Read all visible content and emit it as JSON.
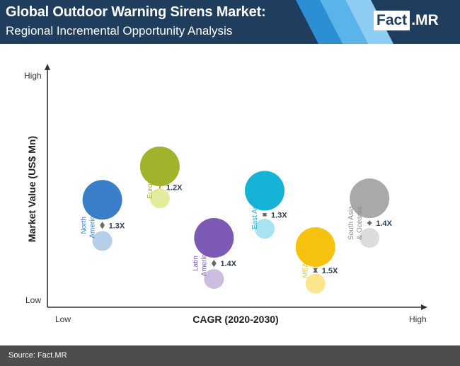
{
  "header": {
    "title": "Global Outdoor Warning Sirens Market:",
    "subtitle": "Regional Incremental Opportunity Analysis",
    "bg_color": "#1f3d5c",
    "stripe_colors": [
      "#2b8fd6",
      "#5ab4ea",
      "#8dcdf3"
    ]
  },
  "logo": {
    "fact": "Fact",
    "dot": ".",
    "mr": "MR"
  },
  "footer": {
    "source": "Source: Fact.MR"
  },
  "chart_data": {
    "type": "bubble",
    "xlabel": "CAGR (2020-2030)",
    "ylabel": "Market Value (US$ Mn)",
    "x_low": "Low",
    "x_high": "High",
    "y_low": "Low",
    "y_high": "High",
    "regions": [
      {
        "name": [
          "North",
          "America"
        ],
        "cagr": 0.11,
        "value": 0.58,
        "value_2020": 0.31,
        "multiplier": "1.3X",
        "color": "#3a7ec9",
        "light": "#b6cfe9",
        "size": "large"
      },
      {
        "name": [
          "Europe"
        ],
        "cagr": 0.28,
        "value": 0.8,
        "value_2020": 0.59,
        "multiplier": "1.2X",
        "color": "#a1b22d",
        "light": "#e4eb9a",
        "size": "large"
      },
      {
        "name": [
          "Latin",
          "America"
        ],
        "cagr": 0.44,
        "value": 0.33,
        "value_2020": 0.06,
        "multiplier": "1.4X",
        "color": "#7d5ab5",
        "light": "#cbbde0",
        "size": "large"
      },
      {
        "name": [
          "East Asia"
        ],
        "cagr": 0.59,
        "value": 0.64,
        "value_2020": 0.39,
        "multiplier": "1.3X",
        "color": "#16b3d7",
        "light": "#a9e3f2",
        "size": "large"
      },
      {
        "name": [
          "MEA"
        ],
        "cagr": 0.74,
        "value": 0.27,
        "value_2020": 0.03,
        "multiplier": "1.5X",
        "color": "#f6c20f",
        "light": "#fbe68b",
        "size": "large"
      },
      {
        "name": [
          "South Asia",
          "& Oceania"
        ],
        "cagr": 0.9,
        "value": 0.59,
        "value_2020": 0.33,
        "multiplier": "1.4X",
        "color": "#a9a9a9",
        "light": "#dcdcdc",
        "size": "large"
      }
    ]
  }
}
